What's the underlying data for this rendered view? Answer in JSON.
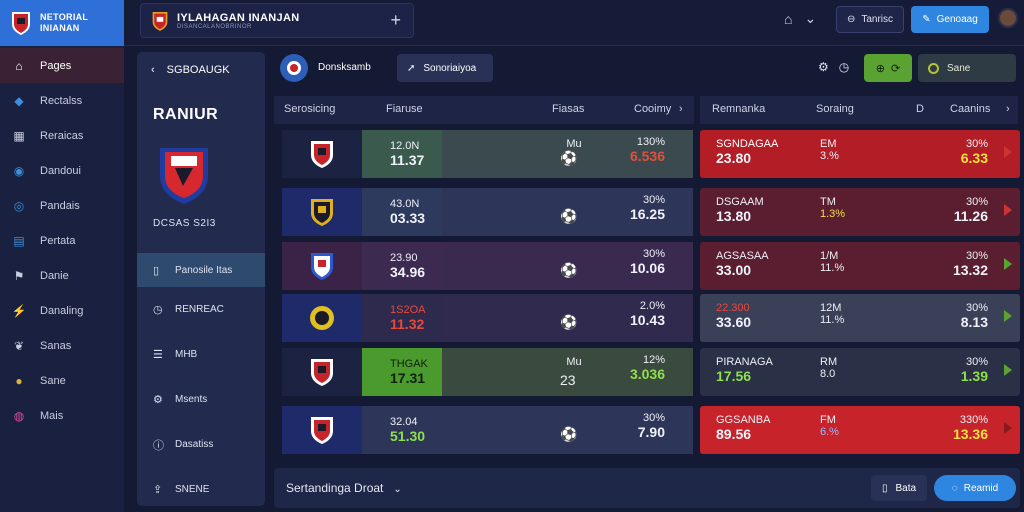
{
  "app": {
    "name_line1": "NETORIAL",
    "name_line2": "INIANAN"
  },
  "sidebar": {
    "items": [
      {
        "label": "Pages",
        "icon": "home-icon"
      },
      {
        "label": "Rectalss",
        "icon": "shield-icon"
      },
      {
        "label": "Reraicas",
        "icon": "grid-icon"
      },
      {
        "label": "Dandoui",
        "icon": "globe-icon"
      },
      {
        "label": "Pandais",
        "icon": "target-icon"
      },
      {
        "label": "Pertata",
        "icon": "chart-icon"
      },
      {
        "label": "Danie",
        "icon": "flag-icon"
      },
      {
        "label": "Danaling",
        "icon": "bolt-icon"
      },
      {
        "label": "Sanas",
        "icon": "leaf-icon"
      },
      {
        "label": "Sane",
        "icon": "star-icon"
      },
      {
        "label": "Mais",
        "icon": "ring-icon"
      }
    ]
  },
  "header": {
    "title": "IYLAHAGAN INANJAN",
    "subtitle": "DISANCALANOBRINOR",
    "plus": "+",
    "btn_outline": "Tanrisc",
    "btn_blue": "Genoaag"
  },
  "panel": {
    "back_label": "SGBOAUGK",
    "team_title": "RANIUR",
    "team_sub": "DCSAS S2I3",
    "items": [
      {
        "label": "Panosile Itas",
        "icon": "book-icon"
      },
      {
        "label": "RENREAC",
        "icon": "clock-icon"
      },
      {
        "label": "MHB",
        "icon": "list-icon"
      },
      {
        "label": "Msents",
        "icon": "settings-icon"
      },
      {
        "label": "Dasatiss",
        "icon": "info-icon"
      },
      {
        "label": "SNENE",
        "icon": "share-icon"
      }
    ]
  },
  "subbar": {
    "league_label": "Donsksamb",
    "pill_label": "Sonoriaiyoa",
    "dark_btn": "Sane"
  },
  "table": {
    "headers_left": [
      "Serosicing",
      "Fiaruse",
      "Fiasas",
      "Cooimy"
    ],
    "headers_right": [
      "Remnanka",
      "Soraing",
      "D",
      "Caanins"
    ],
    "rows": [
      {
        "a_top": "12.0N",
        "a_bot": "11.37",
        "mid": "Mu",
        "pct_top": "130%",
        "pct_bot": "6.536",
        "r_name": "SGNDAGAA",
        "r_val": "23.80",
        "r_m": "EM",
        "r_m2": "3.%",
        "r_pct": "30%",
        "r_pv": "6.33"
      },
      {
        "a_top": "43.0N",
        "a_bot": "03.33",
        "mid": "",
        "pct_top": "30%",
        "pct_bot": "16.25",
        "r_name": "DSGAAM",
        "r_val": "13.80",
        "r_m": "TM",
        "r_m2": "1.3%",
        "r_pct": "30%",
        "r_pv": "11.26"
      },
      {
        "a_top": "23.90",
        "a_bot": "34.96",
        "mid": "",
        "pct_top": "30%",
        "pct_bot": "10.06",
        "r_name": "AGSASAA",
        "r_val": "33.00",
        "r_m": "1/M",
        "r_m2": "11.%",
        "r_pct": "30%",
        "r_pv": "13.32"
      },
      {
        "a_top": "1S2OA",
        "a_bot": "11.32",
        "mid": "",
        "pct_top": "2.0%",
        "pct_bot": "10.43",
        "r_name": "22.300",
        "r_val": "33.60",
        "r_m": "12M",
        "r_m2": "11.%",
        "r_pct": "30%",
        "r_pv": "8.13"
      },
      {
        "a_top": "THGAK",
        "a_bot": "17.31",
        "mid": "Mu",
        "pct_top": "12%",
        "pct_bot": "3.036",
        "r_name": "PIRANAGA",
        "r_val": "17.56",
        "r_m": "RM",
        "r_m2": "8.0",
        "r_pct": "30%",
        "r_pv": "1.39"
      },
      {
        "a_top": "32.04",
        "a_bot": "51.30",
        "mid": "",
        "pct_top": "30%",
        "pct_bot": "7.90",
        "r_name": "GGSANBA",
        "r_val": "89.56",
        "r_m": "FM",
        "r_m2": "6.%",
        "r_pct": "330%",
        "r_pv": "13.36"
      }
    ],
    "row_sub": "23"
  },
  "bottom": {
    "label": "Sertandinga Droat",
    "btn1": "Bata",
    "btn2": "Reamid"
  },
  "colors": {
    "accent": "#2f86e0",
    "red": "#c6242a",
    "green": "#5aa232"
  }
}
